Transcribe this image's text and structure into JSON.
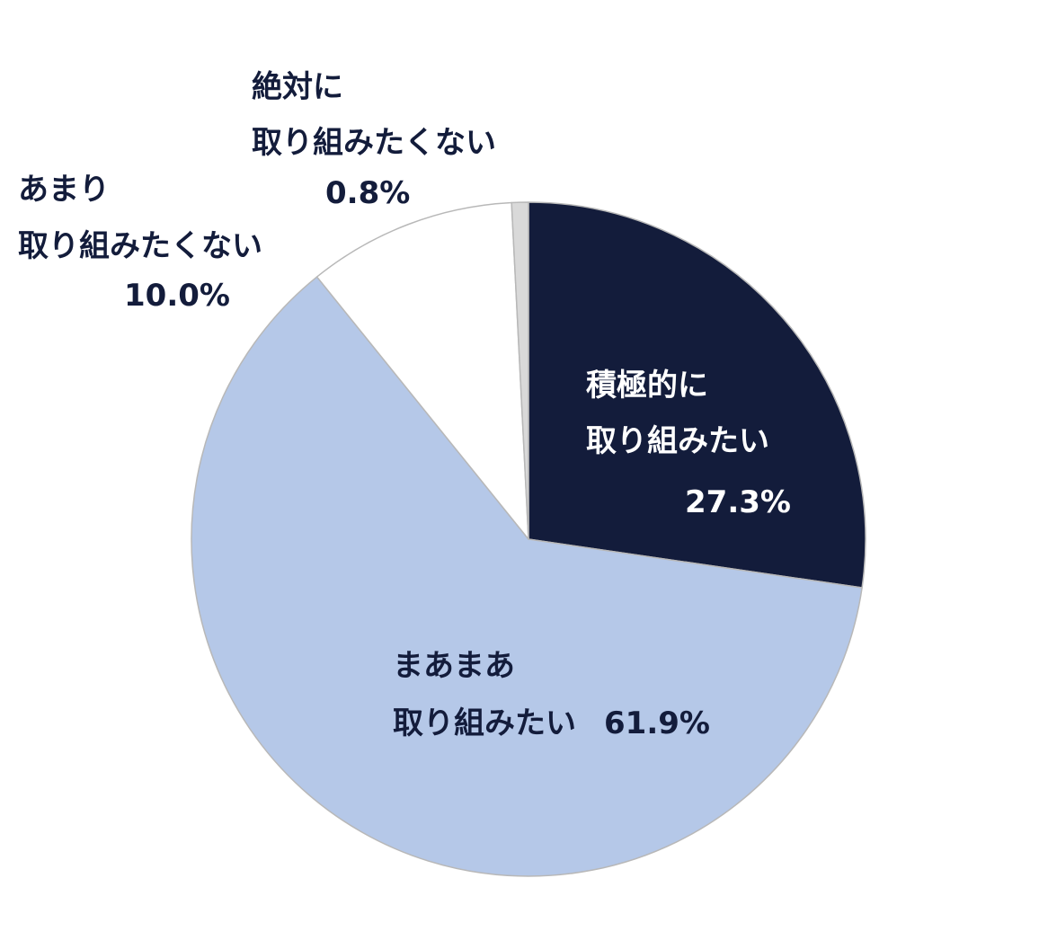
{
  "chart_data": {
    "type": "pie",
    "start_angle_deg": 0,
    "direction": "clockwise",
    "slices": [
      {
        "label_lines": [
          "積極的に",
          "取り組みたい"
        ],
        "value_label": "27.3%",
        "value": 27.3,
        "color": "#131c3b",
        "text_color": "#ffffff"
      },
      {
        "label_lines": [
          "まあまあ",
          "取り組みたい"
        ],
        "value_label": "61.9%",
        "value": 61.9,
        "color": "#b5c8e8",
        "text_color": "#131c3b"
      },
      {
        "label_lines": [
          "あまり",
          "取り組みたくない"
        ],
        "value_label": "10.0%",
        "value": 10.0,
        "color": "#ffffff",
        "text_color": "#131c3b"
      },
      {
        "label_lines": [
          "絶対に",
          "取り組みたくない"
        ],
        "value_label": "0.8%",
        "value": 0.8,
        "color": "#d9d9d9",
        "text_color": "#131c3b"
      }
    ]
  }
}
